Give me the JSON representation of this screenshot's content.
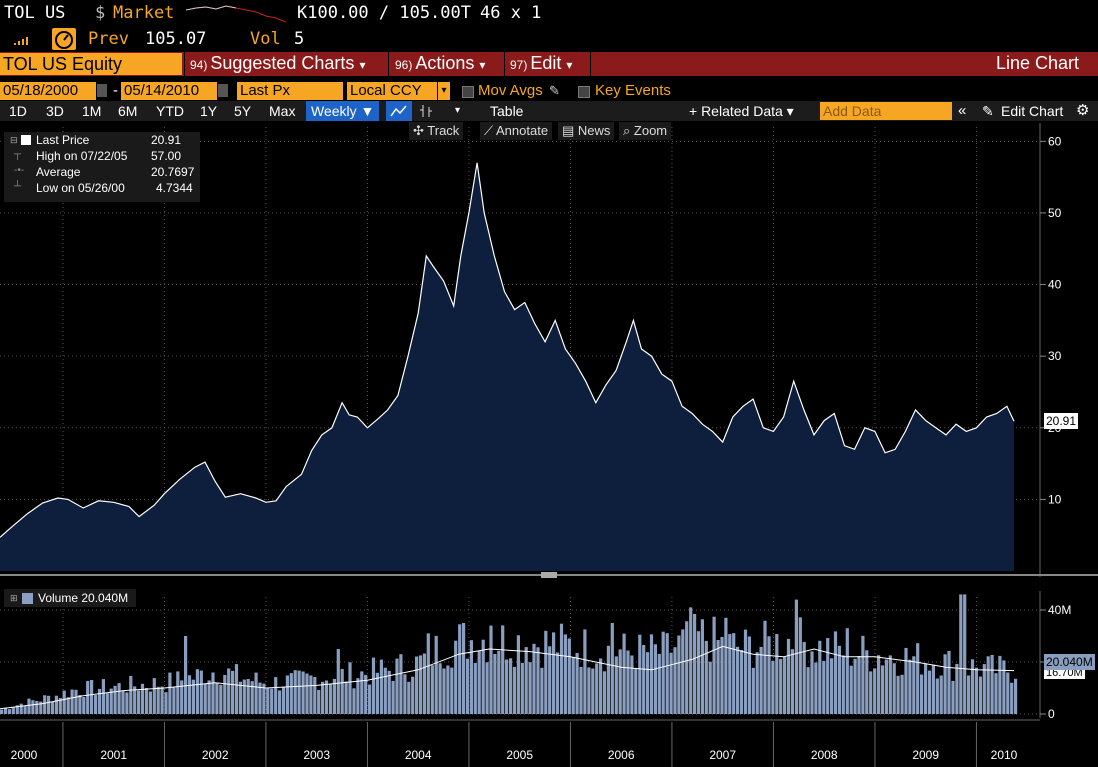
{
  "header": {
    "ticker": "TOL US",
    "dollar": "$",
    "market_label": "Market",
    "quote": "K100.00 / 105.00T",
    "size": "46 x 1",
    "prev_label": "Prev",
    "prev_value": "105.07",
    "vol_label": "Vol",
    "vol_value": "5"
  },
  "menubar": {
    "security": "TOL US Equity",
    "items": [
      {
        "num": "94)",
        "label": "Suggested Charts",
        "arrow": "▾"
      },
      {
        "num": "96)",
        "label": "Actions",
        "arrow": "▾"
      },
      {
        "num": "97)",
        "label": "Edit",
        "arrow": "▾"
      }
    ],
    "title": "Line Chart"
  },
  "controls": {
    "start_date": "05/18/2000",
    "dash": "-",
    "end_date": "05/14/2010",
    "field": "Last Px",
    "currency": "Local CCY",
    "mov_avgs": "Mov Avgs",
    "key_events": "Key Events"
  },
  "toolbar": {
    "periods": [
      "1D",
      "3D",
      "1M",
      "6M",
      "YTD",
      "1Y",
      "5Y",
      "Max"
    ],
    "frequency": "Weekly ▼",
    "table": "Table",
    "related_data": "+ Related Data ▾",
    "add_data_placeholder": "Add Data",
    "edit_chart": "Edit Chart"
  },
  "subtoolbar": {
    "track": "Track",
    "annotate": "Annotate",
    "news": "News",
    "zoom": "Zoom"
  },
  "legend": {
    "last_price_label": "Last Price",
    "last_price_value": "20.91",
    "high_label": "High on 07/22/05",
    "high_value": "57.00",
    "average_label": "Average",
    "average_value": "20.7697",
    "low_label": "Low on 05/26/00",
    "low_value": "4.7344",
    "volume_label": "Volume 20.040M"
  },
  "colors": {
    "area_fill": "#0d1f3c",
    "price_line": "#ffffff",
    "volume_bar": "#8a9ec0",
    "accent": "#f6a623",
    "menubar": "#8b1a1a"
  },
  "chart_data": [
    {
      "type": "area",
      "ylim": [
        0,
        62
      ],
      "yticks": [
        10,
        20,
        30,
        40,
        50,
        60
      ],
      "x_range": [
        2000.38,
        2010.37
      ],
      "x_years": [
        "2000",
        "2001",
        "2002",
        "2003",
        "2004",
        "2005",
        "2006",
        "2007",
        "2008",
        "2009",
        "2010"
      ],
      "last_value_tag": "20.91",
      "grid": true,
      "points": [
        [
          2000.38,
          4.7
        ],
        [
          2000.5,
          6.2
        ],
        [
          2000.65,
          8.0
        ],
        [
          2000.8,
          9.5
        ],
        [
          2000.95,
          10.2
        ],
        [
          2001.05,
          10.0
        ],
        [
          2001.2,
          8.8
        ],
        [
          2001.35,
          9.8
        ],
        [
          2001.5,
          9.6
        ],
        [
          2001.65,
          9.0
        ],
        [
          2001.75,
          7.6
        ],
        [
          2001.9,
          9.2
        ],
        [
          2002.0,
          10.8
        ],
        [
          2002.15,
          12.8
        ],
        [
          2002.3,
          14.5
        ],
        [
          2002.4,
          15.2
        ],
        [
          2002.5,
          12.5
        ],
        [
          2002.6,
          10.3
        ],
        [
          2002.75,
          10.8
        ],
        [
          2002.9,
          10.2
        ],
        [
          2003.0,
          9.6
        ],
        [
          2003.1,
          9.8
        ],
        [
          2003.2,
          11.8
        ],
        [
          2003.35,
          13.5
        ],
        [
          2003.45,
          16.8
        ],
        [
          2003.55,
          19.0
        ],
        [
          2003.65,
          20.0
        ],
        [
          2003.75,
          23.5
        ],
        [
          2003.82,
          21.8
        ],
        [
          2003.9,
          21.5
        ],
        [
          2004.0,
          20.0
        ],
        [
          2004.1,
          21.2
        ],
        [
          2004.2,
          22.5
        ],
        [
          2004.3,
          24.5
        ],
        [
          2004.4,
          30.0
        ],
        [
          2004.5,
          36.0
        ],
        [
          2004.58,
          44.0
        ],
        [
          2004.65,
          42.5
        ],
        [
          2004.75,
          40.5
        ],
        [
          2004.85,
          37.0
        ],
        [
          2004.92,
          44.0
        ],
        [
          2005.0,
          50.0
        ],
        [
          2005.08,
          57.0
        ],
        [
          2005.15,
          50.0
        ],
        [
          2005.25,
          44.0
        ],
        [
          2005.35,
          39.0
        ],
        [
          2005.45,
          36.5
        ],
        [
          2005.55,
          37.5
        ],
        [
          2005.65,
          34.5
        ],
        [
          2005.75,
          32.0
        ],
        [
          2005.85,
          35.0
        ],
        [
          2005.95,
          31.0
        ],
        [
          2006.05,
          29.0
        ],
        [
          2006.15,
          26.5
        ],
        [
          2006.25,
          23.5
        ],
        [
          2006.35,
          26.0
        ],
        [
          2006.45,
          28.0
        ],
        [
          2006.55,
          32.0
        ],
        [
          2006.62,
          35.0
        ],
        [
          2006.7,
          31.0
        ],
        [
          2006.8,
          30.0
        ],
        [
          2006.9,
          27.5
        ],
        [
          2007.0,
          26.5
        ],
        [
          2007.1,
          23.0
        ],
        [
          2007.2,
          22.0
        ],
        [
          2007.3,
          20.5
        ],
        [
          2007.4,
          19.5
        ],
        [
          2007.5,
          18.0
        ],
        [
          2007.6,
          21.5
        ],
        [
          2007.7,
          23.0
        ],
        [
          2007.8,
          24.0
        ],
        [
          2007.9,
          20.0
        ],
        [
          2008.0,
          19.5
        ],
        [
          2008.1,
          21.5
        ],
        [
          2008.2,
          26.5
        ],
        [
          2008.3,
          22.5
        ],
        [
          2008.4,
          19.0
        ],
        [
          2008.5,
          21.0
        ],
        [
          2008.6,
          22.0
        ],
        [
          2008.7,
          17.5
        ],
        [
          2008.8,
          17.0
        ],
        [
          2008.9,
          20.0
        ],
        [
          2009.0,
          19.5
        ],
        [
          2009.1,
          16.5
        ],
        [
          2009.2,
          17.0
        ],
        [
          2009.3,
          19.5
        ],
        [
          2009.4,
          22.5
        ],
        [
          2009.5,
          21.0
        ],
        [
          2009.6,
          20.0
        ],
        [
          2009.7,
          19.0
        ],
        [
          2009.8,
          20.5
        ],
        [
          2009.9,
          19.5
        ],
        [
          2010.0,
          20.0
        ],
        [
          2010.1,
          21.5
        ],
        [
          2010.2,
          22.0
        ],
        [
          2010.3,
          23.0
        ],
        [
          2010.37,
          20.91
        ]
      ]
    },
    {
      "type": "bar",
      "series": [
        {
          "name": "Volume",
          "unit": "M"
        }
      ],
      "ylim": [
        0,
        45
      ],
      "yticks": [
        0,
        20,
        40
      ],
      "ytick_labels": [
        "0",
        "",
        "40M"
      ],
      "last_value_tag": "20.040M",
      "moving_average_tag": "16.70M",
      "envelope": [
        [
          2000.38,
          2
        ],
        [
          2000.6,
          5
        ],
        [
          2000.9,
          8
        ],
        [
          2001.1,
          11
        ],
        [
          2001.4,
          12
        ],
        [
          2001.7,
          13
        ],
        [
          2002.0,
          14
        ],
        [
          2002.3,
          17
        ],
        [
          2002.5,
          20
        ],
        [
          2002.7,
          17
        ],
        [
          2003.0,
          14
        ],
        [
          2003.3,
          15
        ],
        [
          2003.6,
          17
        ],
        [
          2003.9,
          18
        ],
        [
          2004.2,
          20
        ],
        [
          2004.5,
          23
        ],
        [
          2004.7,
          30
        ],
        [
          2004.9,
          33
        ],
        [
          2005.1,
          34
        ],
        [
          2005.4,
          33
        ],
        [
          2005.7,
          32
        ],
        [
          2006.0,
          31
        ],
        [
          2006.3,
          29
        ],
        [
          2006.6,
          28
        ],
        [
          2006.9,
          28
        ],
        [
          2007.1,
          32
        ],
        [
          2007.3,
          35
        ],
        [
          2007.5,
          31
        ],
        [
          2007.7,
          30
        ],
        [
          2008.0,
          32
        ],
        [
          2008.2,
          34
        ],
        [
          2008.4,
          30
        ],
        [
          2008.6,
          29
        ],
        [
          2008.8,
          28
        ],
        [
          2009.0,
          27
        ],
        [
          2009.2,
          26
        ],
        [
          2009.4,
          25
        ],
        [
          2009.6,
          24
        ],
        [
          2009.8,
          22
        ],
        [
          2010.0,
          21
        ],
        [
          2010.2,
          20
        ],
        [
          2010.37,
          20.0
        ]
      ],
      "spikes": [
        [
          2002.18,
          30
        ],
        [
          2003.7,
          25
        ],
        [
          2004.6,
          31
        ],
        [
          2005.2,
          34
        ],
        [
          2006.4,
          35
        ],
        [
          2007.15,
          41
        ],
        [
          2007.5,
          37
        ],
        [
          2008.2,
          44
        ],
        [
          2008.7,
          33
        ],
        [
          2009.85,
          46
        ]
      ],
      "moving_average": [
        [
          2000.38,
          2
        ],
        [
          2000.8,
          4
        ],
        [
          2001.2,
          7
        ],
        [
          2001.6,
          9
        ],
        [
          2002.0,
          10
        ],
        [
          2002.5,
          12
        ],
        [
          2003.0,
          10
        ],
        [
          2003.5,
          11
        ],
        [
          2004.0,
          13
        ],
        [
          2004.5,
          17
        ],
        [
          2004.9,
          23
        ],
        [
          2005.2,
          25
        ],
        [
          2005.6,
          24
        ],
        [
          2006.0,
          22
        ],
        [
          2006.5,
          18
        ],
        [
          2006.8,
          17
        ],
        [
          2007.2,
          21
        ],
        [
          2007.5,
          26
        ],
        [
          2007.8,
          23
        ],
        [
          2008.1,
          22
        ],
        [
          2008.4,
          25
        ],
        [
          2008.7,
          22
        ],
        [
          2009.0,
          22
        ],
        [
          2009.4,
          20
        ],
        [
          2009.7,
          18
        ],
        [
          2010.0,
          17
        ],
        [
          2010.37,
          16.7
        ]
      ]
    }
  ]
}
